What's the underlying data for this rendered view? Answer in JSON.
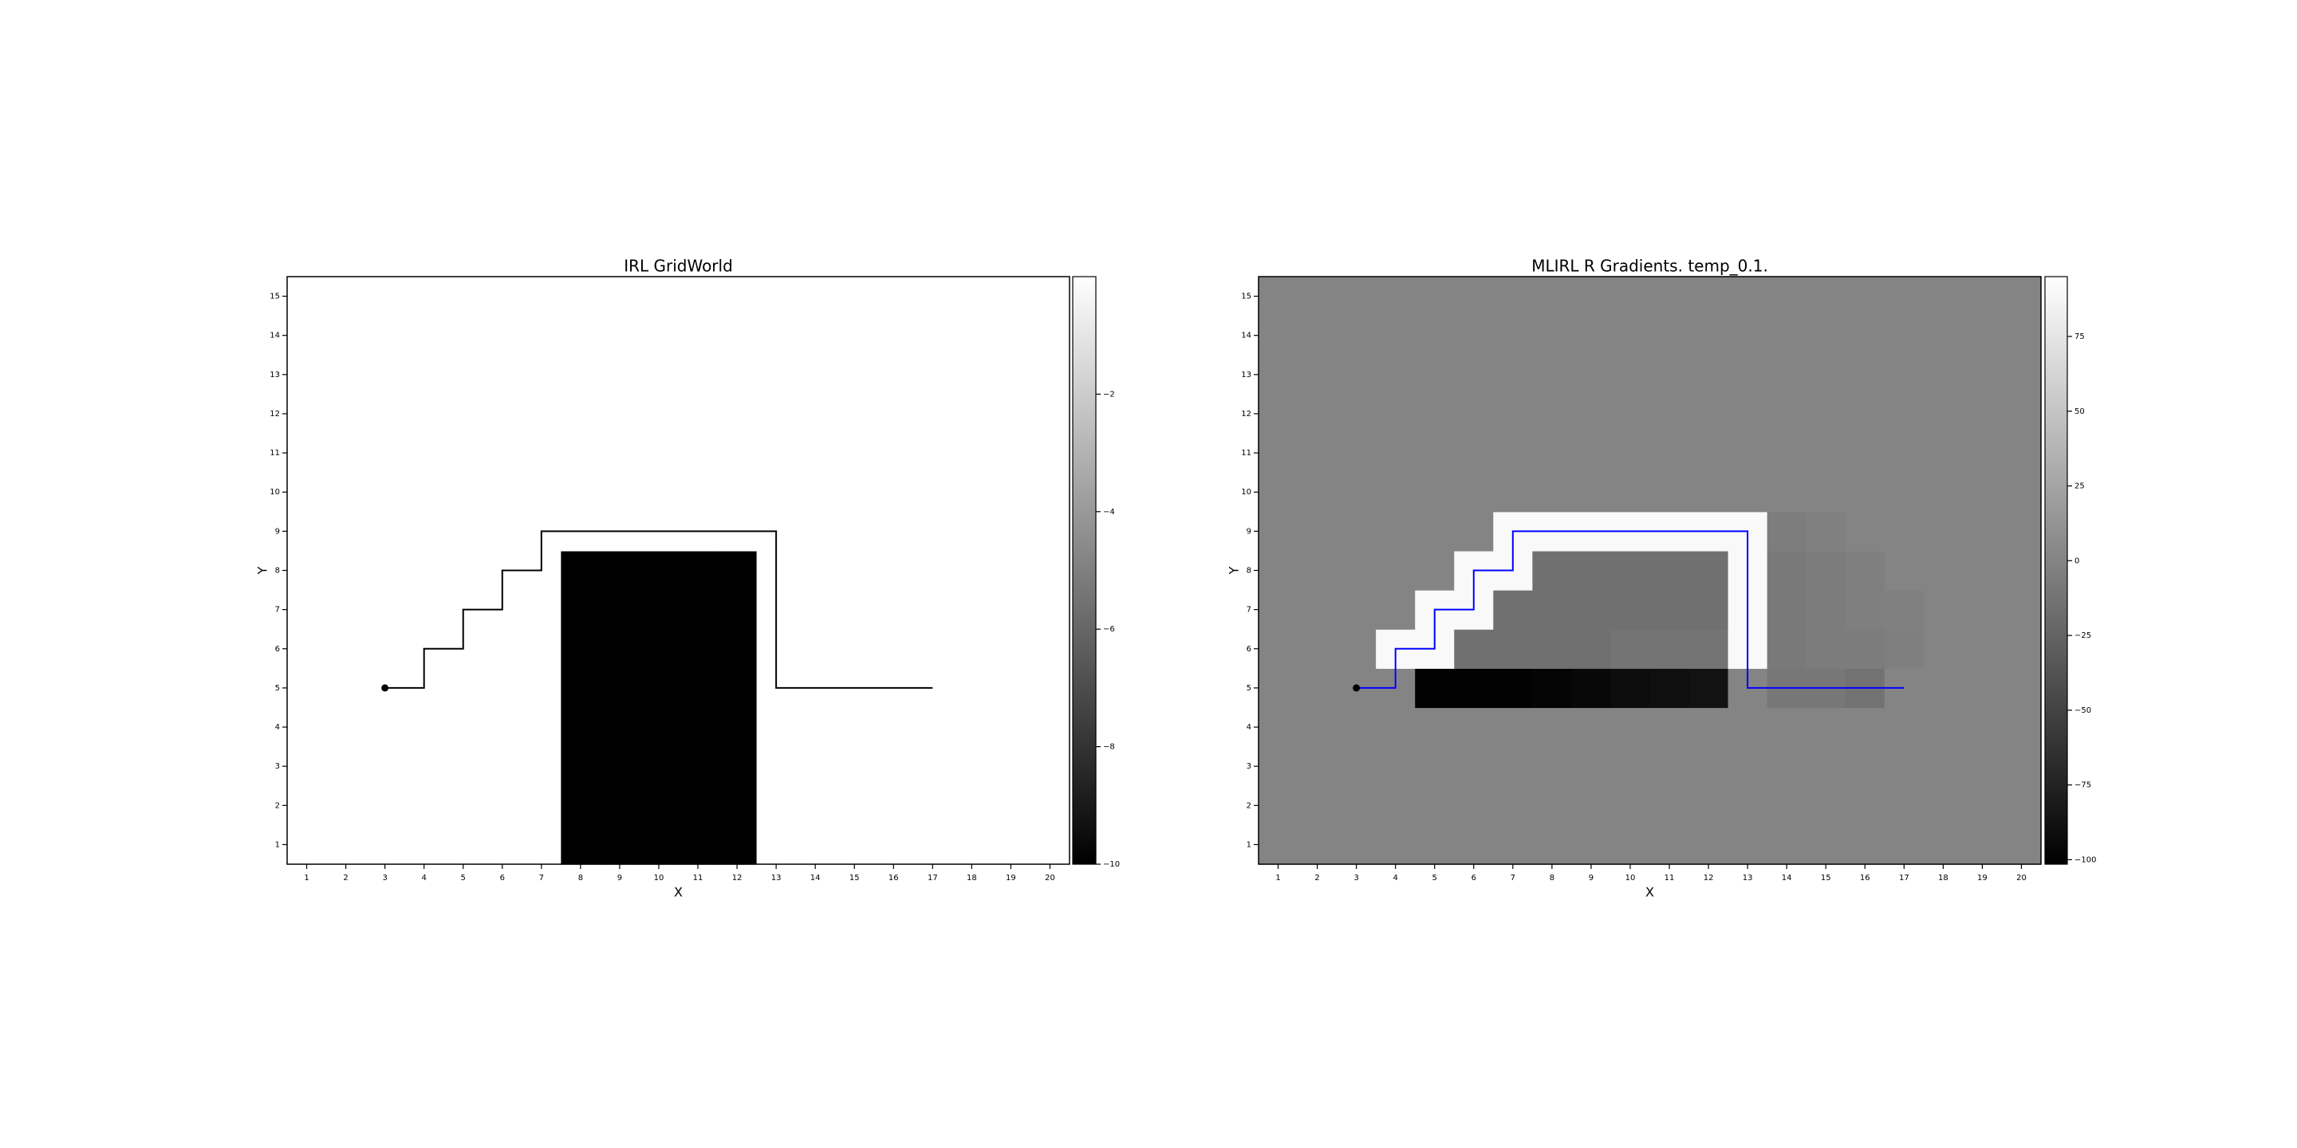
{
  "chart_data": [
    {
      "type": "heatmap",
      "title": "IRL GridWorld",
      "xlabel": "X",
      "ylabel": "Y",
      "xlim": [
        0.5,
        20.5
      ],
      "ylim": [
        0.5,
        15.5
      ],
      "xticks": [
        1,
        2,
        3,
        4,
        5,
        6,
        7,
        8,
        9,
        10,
        11,
        12,
        13,
        14,
        15,
        16,
        17,
        18,
        19,
        20
      ],
      "yticks": [
        1,
        2,
        3,
        4,
        5,
        6,
        7,
        8,
        9,
        10,
        11,
        12,
        13,
        14,
        15
      ],
      "colormap": "gray",
      "clim": [
        -10,
        0
      ],
      "cticks": [
        {
          "value": -2,
          "label": "−2"
        },
        {
          "value": -4,
          "label": "−4"
        },
        {
          "value": -6,
          "label": "−6"
        },
        {
          "value": -8,
          "label": "−8"
        },
        {
          "value": -10,
          "label": "−10"
        }
      ],
      "z": [
        [
          0,
          0,
          0,
          0,
          0,
          0,
          0,
          -10,
          -10,
          -10,
          -10,
          -10,
          0,
          0,
          0,
          0,
          0,
          0,
          0,
          0
        ],
        [
          0,
          0,
          0,
          0,
          0,
          0,
          0,
          -10,
          -10,
          -10,
          -10,
          -10,
          0,
          0,
          0,
          0,
          0,
          0,
          0,
          0
        ],
        [
          0,
          0,
          0,
          0,
          0,
          0,
          0,
          -10,
          -10,
          -10,
          -10,
          -10,
          0,
          0,
          0,
          0,
          0,
          0,
          0,
          0
        ],
        [
          0,
          0,
          0,
          0,
          0,
          0,
          0,
          -10,
          -10,
          -10,
          -10,
          -10,
          0,
          0,
          0,
          0,
          0,
          0,
          0,
          0
        ],
        [
          0,
          0,
          0,
          0,
          0,
          0,
          0,
          -10,
          -10,
          -10,
          -10,
          -10,
          0,
          0,
          0,
          0,
          0,
          0,
          0,
          0
        ],
        [
          0,
          0,
          0,
          0,
          0,
          0,
          0,
          -10,
          -10,
          -10,
          -10,
          -10,
          0,
          0,
          0,
          0,
          0,
          0,
          0,
          0
        ],
        [
          0,
          0,
          0,
          0,
          0,
          0,
          0,
          -10,
          -10,
          -10,
          -10,
          -10,
          0,
          0,
          0,
          0,
          0,
          0,
          0,
          0
        ],
        [
          0,
          0,
          0,
          0,
          0,
          0,
          0,
          -10,
          -10,
          -10,
          -10,
          -10,
          0,
          0,
          0,
          0,
          0,
          0,
          0,
          0
        ],
        [
          0,
          0,
          0,
          0,
          0,
          0,
          0,
          0,
          0,
          0,
          0,
          0,
          0,
          0,
          0,
          0,
          0,
          0,
          0,
          0
        ],
        [
          0,
          0,
          0,
          0,
          0,
          0,
          0,
          0,
          0,
          0,
          0,
          0,
          0,
          0,
          0,
          0,
          0,
          0,
          0,
          0
        ],
        [
          0,
          0,
          0,
          0,
          0,
          0,
          0,
          0,
          0,
          0,
          0,
          0,
          0,
          0,
          0,
          0,
          0,
          0,
          0,
          0
        ],
        [
          0,
          0,
          0,
          0,
          0,
          0,
          0,
          0,
          0,
          0,
          0,
          0,
          0,
          0,
          0,
          0,
          0,
          0,
          0,
          0
        ],
        [
          0,
          0,
          0,
          0,
          0,
          0,
          0,
          0,
          0,
          0,
          0,
          0,
          0,
          0,
          0,
          0,
          0,
          0,
          0,
          0
        ],
        [
          0,
          0,
          0,
          0,
          0,
          0,
          0,
          0,
          0,
          0,
          0,
          0,
          0,
          0,
          0,
          0,
          0,
          0,
          0,
          0
        ],
        [
          0,
          0,
          0,
          0,
          0,
          0,
          0,
          0,
          0,
          0,
          0,
          0,
          0,
          0,
          0,
          0,
          0,
          0,
          0,
          0
        ]
      ],
      "path": {
        "color": "#000000",
        "x": [
          3,
          4,
          4,
          5,
          5,
          6,
          6,
          7,
          7,
          13,
          13,
          17
        ],
        "y": [
          5,
          5,
          6,
          6,
          7,
          7,
          8,
          8,
          9,
          9,
          5,
          5
        ]
      },
      "start": {
        "x": 3,
        "y": 5,
        "color": "#000000"
      }
    },
    {
      "type": "heatmap",
      "title": "MLIRL R Gradients. temp_0.1.",
      "xlabel": "X",
      "ylabel": "Y",
      "xlim": [
        0.5,
        20.5
      ],
      "ylim": [
        0.5,
        15.5
      ],
      "xticks": [
        1,
        2,
        3,
        4,
        5,
        6,
        7,
        8,
        9,
        10,
        11,
        12,
        13,
        14,
        15,
        16,
        17,
        18,
        19,
        20
      ],
      "yticks": [
        1,
        2,
        3,
        4,
        5,
        6,
        7,
        8,
        9,
        10,
        11,
        12,
        13,
        14,
        15
      ],
      "colormap": "gray",
      "clim": [
        -101.5,
        95
      ],
      "cticks": [
        75,
        50,
        25,
        0,
        {
          "value": -25,
          "label": "−25"
        },
        {
          "value": -50,
          "label": "−50"
        },
        {
          "value": -75,
          "label": "−75"
        },
        {
          "value": -100,
          "label": "−100"
        }
      ],
      "z": [
        [
          0,
          0,
          0,
          0,
          0,
          0,
          0,
          0,
          0,
          0,
          0,
          0,
          0,
          0,
          0,
          0,
          0,
          0,
          0,
          0
        ],
        [
          0,
          0,
          0,
          0,
          0,
          0,
          0,
          0,
          0,
          0,
          0,
          0,
          0,
          0,
          0,
          0,
          0,
          0,
          0,
          0
        ],
        [
          0,
          0,
          0,
          0,
          0,
          0,
          0,
          0,
          0,
          0,
          0,
          0,
          0,
          0,
          0,
          0,
          0,
          0,
          0,
          0
        ],
        [
          0,
          0,
          0,
          0,
          0,
          0,
          0,
          0,
          0,
          0,
          0,
          0,
          0,
          0,
          0,
          0,
          0,
          0,
          0,
          0
        ],
        [
          0,
          0,
          0,
          0,
          -100,
          -100,
          -100,
          -98,
          -95,
          -92,
          -90,
          -88,
          0,
          -10,
          -10,
          -14,
          0,
          0,
          0,
          0
        ],
        [
          0,
          0,
          0,
          90,
          90,
          -15,
          -15,
          -15,
          -15,
          -12,
          -12,
          -12,
          90,
          -8,
          -6,
          -6,
          -4,
          0,
          0,
          0
        ],
        [
          0,
          0,
          0,
          0,
          90,
          90,
          -15,
          -15,
          -15,
          -15,
          -15,
          -15,
          90,
          -8,
          -6,
          -4,
          -3,
          0,
          0,
          0
        ],
        [
          0,
          0,
          0,
          0,
          0,
          90,
          90,
          -15,
          -15,
          -15,
          -15,
          -15,
          90,
          -8,
          -6,
          -4,
          0,
          0,
          0,
          0
        ],
        [
          0,
          0,
          0,
          0,
          0,
          0,
          90,
          90,
          90,
          90,
          90,
          90,
          90,
          -5,
          -3,
          0,
          0,
          0,
          0,
          0
        ],
        [
          0,
          0,
          0,
          0,
          0,
          0,
          0,
          0,
          0,
          0,
          0,
          0,
          0,
          0,
          0,
          0,
          0,
          0,
          0,
          0
        ],
        [
          0,
          0,
          0,
          0,
          0,
          0,
          0,
          0,
          0,
          0,
          0,
          0,
          0,
          0,
          0,
          0,
          0,
          0,
          0,
          0
        ],
        [
          0,
          0,
          0,
          0,
          0,
          0,
          0,
          0,
          0,
          0,
          0,
          0,
          0,
          0,
          0,
          0,
          0,
          0,
          0,
          0
        ],
        [
          0,
          0,
          0,
          0,
          0,
          0,
          0,
          0,
          0,
          0,
          0,
          0,
          0,
          0,
          0,
          0,
          0,
          0,
          0,
          0
        ],
        [
          0,
          0,
          0,
          0,
          0,
          0,
          0,
          0,
          0,
          0,
          0,
          0,
          0,
          0,
          0,
          0,
          0,
          0,
          0,
          0
        ],
        [
          0,
          0,
          0,
          0,
          0,
          0,
          0,
          0,
          0,
          0,
          0,
          0,
          0,
          0,
          0,
          0,
          0,
          0,
          0,
          0
        ]
      ],
      "path": {
        "color": "#0000ff",
        "x": [
          3,
          4,
          4,
          5,
          5,
          6,
          6,
          7,
          7,
          13,
          13,
          17
        ],
        "y": [
          5,
          5,
          6,
          6,
          7,
          7,
          8,
          8,
          9,
          9,
          5,
          5
        ]
      },
      "start": {
        "x": 3,
        "y": 5,
        "color": "#000000"
      }
    }
  ]
}
